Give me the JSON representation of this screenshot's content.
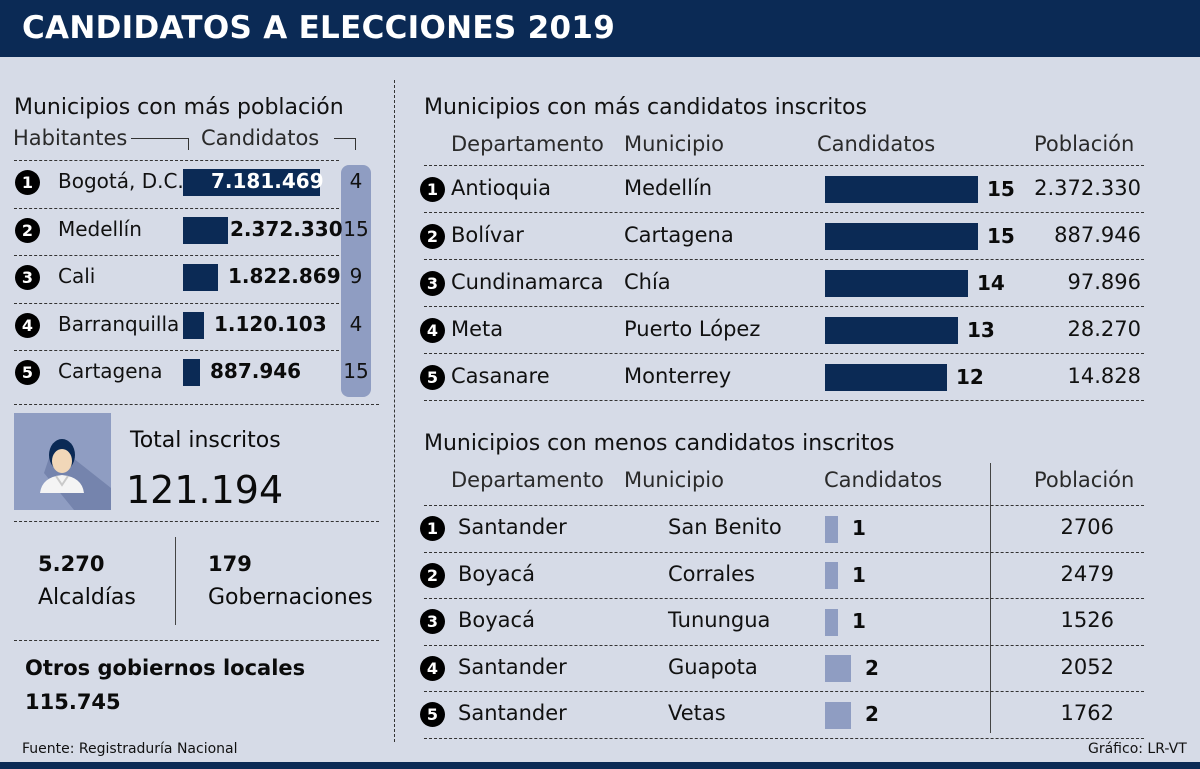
{
  "header": {
    "title": "CANDIDATOS A ELECCIONES 2019"
  },
  "colors": {
    "navy": "#0b2a55",
    "light": "#8f9dc2",
    "bg": "#d6dbe7"
  },
  "left": {
    "title": "Municipios con más población",
    "col_habitantes": "Habitantes",
    "col_candidatos": "Candidatos",
    "rows": [
      {
        "n": "1",
        "city": "Bogotá, D.C.",
        "pop": 7181469,
        "pop_label": "7.181.469",
        "cand": "4"
      },
      {
        "n": "2",
        "city": "Medellín",
        "pop": 2372330,
        "pop_label": "2.372.330",
        "cand": "15"
      },
      {
        "n": "3",
        "city": "Cali",
        "pop": 1822869,
        "pop_label": "1.822.869",
        "cand": "9"
      },
      {
        "n": "4",
        "city": "Barranquilla",
        "pop": 1120103,
        "pop_label": "1.120.103",
        "cand": "4"
      },
      {
        "n": "5",
        "city": "Cartagena",
        "pop": 887946,
        "pop_label": "887.946",
        "cand": "15"
      }
    ],
    "total_label": "Total inscritos",
    "total_value": "121.194",
    "alcaldias_value": "5.270",
    "alcaldias_label": "Alcaldías",
    "gob_value": "179",
    "gob_label": "Gobernaciones",
    "otros_label": "Otros gobiernos locales",
    "otros_value": "115.745"
  },
  "top": {
    "title": "Municipios con más candidatos inscritos",
    "headers": [
      "Departamento",
      "Municipio",
      "Candidatos",
      "Población"
    ],
    "rows": [
      {
        "n": "1",
        "dep": "Antioquia",
        "mun": "Medellín",
        "cand": 15,
        "pob": "2.372.330"
      },
      {
        "n": "2",
        "dep": "Bolívar",
        "mun": "Cartagena",
        "cand": 15,
        "pob": "887.946"
      },
      {
        "n": "3",
        "dep": "Cundinamarca",
        "mun": "Chía",
        "cand": 14,
        "pob": "97.896"
      },
      {
        "n": "4",
        "dep": "Meta",
        "mun": "Puerto López",
        "cand": 13,
        "pob": "28.270"
      },
      {
        "n": "5",
        "dep": "Casanare",
        "mun": "Monterrey",
        "cand": 12,
        "pob": "14.828"
      }
    ]
  },
  "bottom": {
    "title": "Municipios con menos candidatos inscritos",
    "headers": [
      "Departamento",
      "Municipio",
      "Candidatos",
      "Población"
    ],
    "rows": [
      {
        "n": "1",
        "dep": "Santander",
        "mun": "San Benito",
        "cand": 1,
        "pob": "2706"
      },
      {
        "n": "2",
        "dep": "Boyacá",
        "mun": "Corrales",
        "cand": 1,
        "pob": "2479"
      },
      {
        "n": "3",
        "dep": "Boyacá",
        "mun": "Tunungua",
        "cand": 1,
        "pob": "1526"
      },
      {
        "n": "4",
        "dep": "Santander",
        "mun": "Guapota",
        "cand": 2,
        "pob": "2052"
      },
      {
        "n": "5",
        "dep": "Santander",
        "mun": "Vetas",
        "cand": 2,
        "pob": "1762"
      }
    ]
  },
  "footer": {
    "source": "Fuente: Registraduría Nacional",
    "credit": "Gráfico: LR-VT"
  },
  "chart_data": [
    {
      "type": "bar",
      "title": "Municipios con más población",
      "categories": [
        "Bogotá, D.C.",
        "Medellín",
        "Cali",
        "Barranquilla",
        "Cartagena"
      ],
      "series": [
        {
          "name": "Habitantes",
          "values": [
            7181469,
            2372330,
            1822869,
            1120103,
            887946
          ]
        },
        {
          "name": "Candidatos",
          "values": [
            4,
            15,
            9,
            4,
            15
          ]
        }
      ]
    },
    {
      "type": "bar",
      "title": "Municipios con más candidatos inscritos",
      "categories": [
        "Medellín",
        "Cartagena",
        "Chía",
        "Puerto López",
        "Monterrey"
      ],
      "series": [
        {
          "name": "Candidatos",
          "values": [
            15,
            15,
            14,
            13,
            12
          ]
        },
        {
          "name": "Población",
          "values": [
            2372330,
            887946,
            97896,
            28270,
            14828
          ]
        }
      ]
    },
    {
      "type": "bar",
      "title": "Municipios con menos candidatos inscritos",
      "categories": [
        "San Benito",
        "Corrales",
        "Tunungua",
        "Guapota",
        "Vetas"
      ],
      "series": [
        {
          "name": "Candidatos",
          "values": [
            1,
            1,
            1,
            2,
            2
          ]
        },
        {
          "name": "Población",
          "values": [
            2706,
            2479,
            1526,
            2052,
            1762
          ]
        }
      ]
    }
  ]
}
